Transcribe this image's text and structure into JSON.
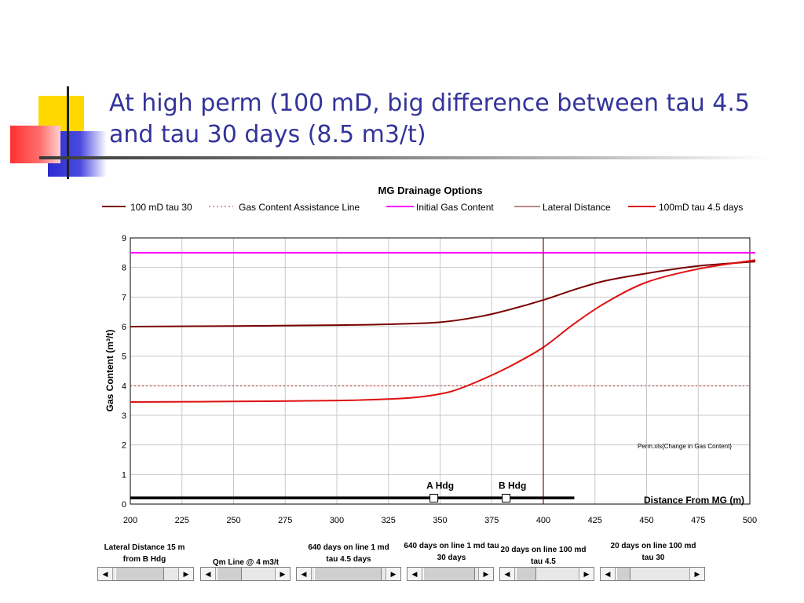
{
  "slide": {
    "title": "At high perm (100 mD, big difference between tau 4.5 and tau 30 days (8.5 m3/t)"
  },
  "colors": {
    "title": "#33349a",
    "tau30": "#7a0000",
    "tau45": "#e01010",
    "assist": "#c02020",
    "initial": "#ff00ff",
    "lateral": "#7a1010"
  },
  "chart_data": {
    "type": "line",
    "title": "MG  Drainage Options",
    "ylabel": "Gas Content (m³/t)",
    "xlabel": "Distance From MG (m)",
    "xlim": [
      200,
      500
    ],
    "ylim": [
      0,
      9
    ],
    "x_ticks": [
      "200",
      "225",
      "250",
      "275",
      "300",
      "325",
      "350",
      "375",
      "400",
      "425",
      "450",
      "475",
      "500"
    ],
    "y_ticks": [
      "0",
      "1",
      "2",
      "3",
      "4",
      "5",
      "6",
      "7",
      "8",
      "9"
    ],
    "grid": true,
    "legend_position": "top",
    "legend": [
      {
        "name": "100 mD tau 30",
        "style": "solid",
        "color": "#7a0000"
      },
      {
        "name": "Gas Content Assistance Line",
        "style": "dotted",
        "color": "#c02020"
      },
      {
        "name": "Initial Gas Content",
        "style": "solid",
        "color": "#ff00ff"
      },
      {
        "name": "Lateral Distance",
        "style": "thin",
        "color": "#7a1010"
      },
      {
        "name": "100mD tau 4.5 days",
        "style": "solid",
        "color": "#e01010"
      }
    ],
    "series": [
      {
        "name": "100 mD tau 30",
        "x": [
          200,
          250,
          300,
          325,
          350,
          370,
          385,
          400,
          415,
          430,
          450,
          475,
          500
        ],
        "y": [
          6.0,
          6.02,
          6.05,
          6.08,
          6.15,
          6.35,
          6.6,
          6.9,
          7.25,
          7.55,
          7.8,
          8.05,
          8.2
        ]
      },
      {
        "name": "100mD tau 4.5 days",
        "x": [
          200,
          250,
          300,
          325,
          340,
          355,
          370,
          385,
          400,
          415,
          430,
          450,
          475,
          500
        ],
        "y": [
          3.45,
          3.47,
          3.5,
          3.55,
          3.62,
          3.8,
          4.2,
          4.7,
          5.3,
          6.1,
          6.8,
          7.5,
          7.95,
          8.25
        ]
      },
      {
        "name": "Initial Gas Content",
        "x": [
          200,
          500
        ],
        "y": [
          8.5,
          8.5
        ]
      },
      {
        "name": "Gas Content Assistance Line",
        "x": [
          200,
          500
        ],
        "y": [
          4,
          4
        ]
      }
    ],
    "lateral_distance_x": 400,
    "heading_line": {
      "x": [
        200,
        415
      ],
      "y": 0.25
    },
    "markers": [
      {
        "label": "A Hdg",
        "x": 347,
        "y": 0.2
      },
      {
        "label": "B Hdg",
        "x": 382,
        "y": 0.2
      }
    ],
    "annotation": "Perm.xls{Change in Gas Content}"
  },
  "controls": [
    {
      "label": "Lateral Distance 15 m from B Hdg"
    },
    {
      "label": "Qm Line @ 4 m3/t"
    },
    {
      "label": "640  days on line 1 md tau 4.5 days"
    },
    {
      "label": "640  days on line 1 md tau 30 days"
    },
    {
      "label": "20  days on line 100 md tau 4.5"
    },
    {
      "label": "20  days on line 100 md tau 30"
    }
  ]
}
